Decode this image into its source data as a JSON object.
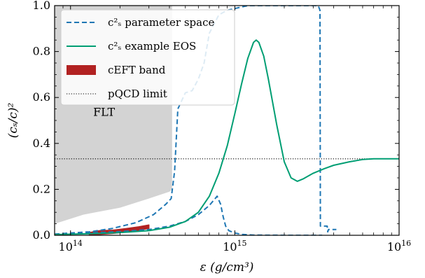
{
  "chart_data": {
    "type": "line",
    "xlabel": "ε (g/cm³)",
    "ylabel": "(cₛ/c)²",
    "x_scale": "log",
    "xlim": [
      80000000000000.0,
      1e+16
    ],
    "ylim": [
      0,
      1
    ],
    "grid": false,
    "legend_position": "top-left",
    "x_ticks": [
      {
        "value": 100000000000000.0,
        "base": "10",
        "exp": "14"
      },
      {
        "value": 1000000000000000.0,
        "base": "10",
        "exp": "15"
      },
      {
        "value": 1e+16,
        "base": "10",
        "exp": "16"
      }
    ],
    "y_ticks": [
      {
        "value": 0,
        "label": "0.0"
      },
      {
        "value": 0.2,
        "label": "0.2"
      },
      {
        "value": 0.4,
        "label": "0.4"
      },
      {
        "value": 0.6,
        "label": "0.6"
      },
      {
        "value": 0.8,
        "label": "0.8"
      },
      {
        "value": 1.0,
        "label": "1.0"
      }
    ],
    "annotations": [
      {
        "text": "FLT",
        "x": 160000000000000.0,
        "y": 0.52
      }
    ],
    "legend": [
      {
        "key": "param",
        "label": "c²ₛ parameter space"
      },
      {
        "key": "example",
        "label": "c²ₛ example EOS"
      },
      {
        "key": "ceft",
        "label": "cEFT band"
      },
      {
        "key": "pqcd",
        "label": "pQCD limit"
      }
    ],
    "colors": {
      "param": "#1f77b4",
      "example": "#009e73",
      "ceft": "#b22222",
      "pqcd": "#000000",
      "flt": "#d3d3d3"
    },
    "flt_region": {
      "x": [
        80000000000000.0,
        120000000000000.0,
        200000000000000.0,
        300000000000000.0,
        400000000000000.0,
        415000000000000.0,
        415000000000000.0,
        80000000000000.0
      ],
      "y": [
        0.05,
        0.09,
        0.12,
        0.16,
        0.19,
        0.2,
        1.0,
        1.0
      ]
    },
    "series": [
      {
        "key": "param_upper",
        "x": [
          80000000000000.0,
          100000000000000.0,
          130000000000000.0,
          180000000000000.0,
          250000000000000.0,
          320000000000000.0,
          380000000000000.0,
          410000000000000.0,
          430000000000000.0,
          450000000000000.0,
          500000000000000.0,
          550000000000000.0,
          600000000000000.0,
          650000000000000.0,
          700000000000000.0,
          800000000000000.0,
          900000000000000.0,
          1200000000000000.0,
          2000000000000000.0,
          3000000000000000.0,
          3220000000000000.0,
          3300000000000000.0,
          3320000000000000.0,
          3500000000000000.0,
          3650000000000000.0,
          3680000000000000.0,
          3720000000000000.0,
          3850000000000000.0,
          4000000000000000.0,
          4150000000000000.0
        ],
        "y": [
          0.005,
          0.01,
          0.015,
          0.03,
          0.055,
          0.09,
          0.135,
          0.16,
          0.28,
          0.55,
          0.62,
          0.63,
          0.68,
          0.75,
          0.88,
          0.96,
          0.98,
          1.0,
          1.0,
          1.0,
          1.0,
          0.98,
          0.04,
          0.04,
          0.04,
          0.015,
          0.025,
          0.025,
          0.025,
          0.025
        ]
      },
      {
        "key": "param_lower",
        "x": [
          80000000000000.0,
          100000000000000.0,
          150000000000000.0,
          200000000000000.0,
          300000000000000.0,
          400000000000000.0,
          500000000000000.0,
          600000000000000.0,
          700000000000000.0,
          780000000000000.0,
          820000000000000.0,
          850000000000000.0,
          880000000000000.0,
          920000000000000.0,
          1000000000000000.0,
          1100000000000000.0,
          1300000000000000.0,
          2000000000000000.0,
          3000000000000000.0,
          3300000000000000.0,
          3320000000000000.0,
          3400000000000000.0
        ],
        "y": [
          0.005,
          0.008,
          0.012,
          0.016,
          0.025,
          0.04,
          0.06,
          0.09,
          0.13,
          0.17,
          0.135,
          0.08,
          0.04,
          0.02,
          0.01,
          0.004,
          0.001,
          0.0,
          0.0,
          0.0,
          0.0,
          0.0
        ]
      },
      {
        "key": "example",
        "x": [
          80000000000000.0,
          100000000000000.0,
          150000000000000.0,
          200000000000000.0,
          300000000000000.0,
          400000000000000.0,
          500000000000000.0,
          600000000000000.0,
          700000000000000.0,
          800000000000000.0,
          900000000000000.0,
          1000000000000000.0,
          1100000000000000.0,
          1200000000000000.0,
          1300000000000000.0,
          1350000000000000.0,
          1400000000000000.0,
          1500000000000000.0,
          1600000000000000.0,
          1800000000000000.0,
          2000000000000000.0,
          2200000000000000.0,
          2400000000000000.0,
          2600000000000000.0,
          3000000000000000.0,
          3500000000000000.0,
          4000000000000000.0,
          5000000000000000.0,
          6000000000000000.0,
          7000000000000000.0,
          8000000000000000.0,
          1e+16
        ],
        "y": [
          0.003,
          0.005,
          0.008,
          0.012,
          0.02,
          0.035,
          0.06,
          0.1,
          0.17,
          0.27,
          0.39,
          0.53,
          0.66,
          0.77,
          0.84,
          0.85,
          0.84,
          0.78,
          0.68,
          0.48,
          0.32,
          0.25,
          0.235,
          0.245,
          0.27,
          0.29,
          0.305,
          0.32,
          0.33,
          0.333,
          0.333,
          0.333
        ]
      }
    ],
    "ceft_band": {
      "x": [
        130000000000000.0,
        150000000000000.0,
        180000000000000.0,
        220000000000000.0,
        260000000000000.0,
        300000000000000.0
      ],
      "y_low": [
        0.003,
        0.004,
        0.008,
        0.014,
        0.022,
        0.03
      ],
      "y_high": [
        0.012,
        0.02,
        0.022,
        0.03,
        0.037,
        0.045
      ]
    },
    "pqcd_limit": 0.333
  }
}
